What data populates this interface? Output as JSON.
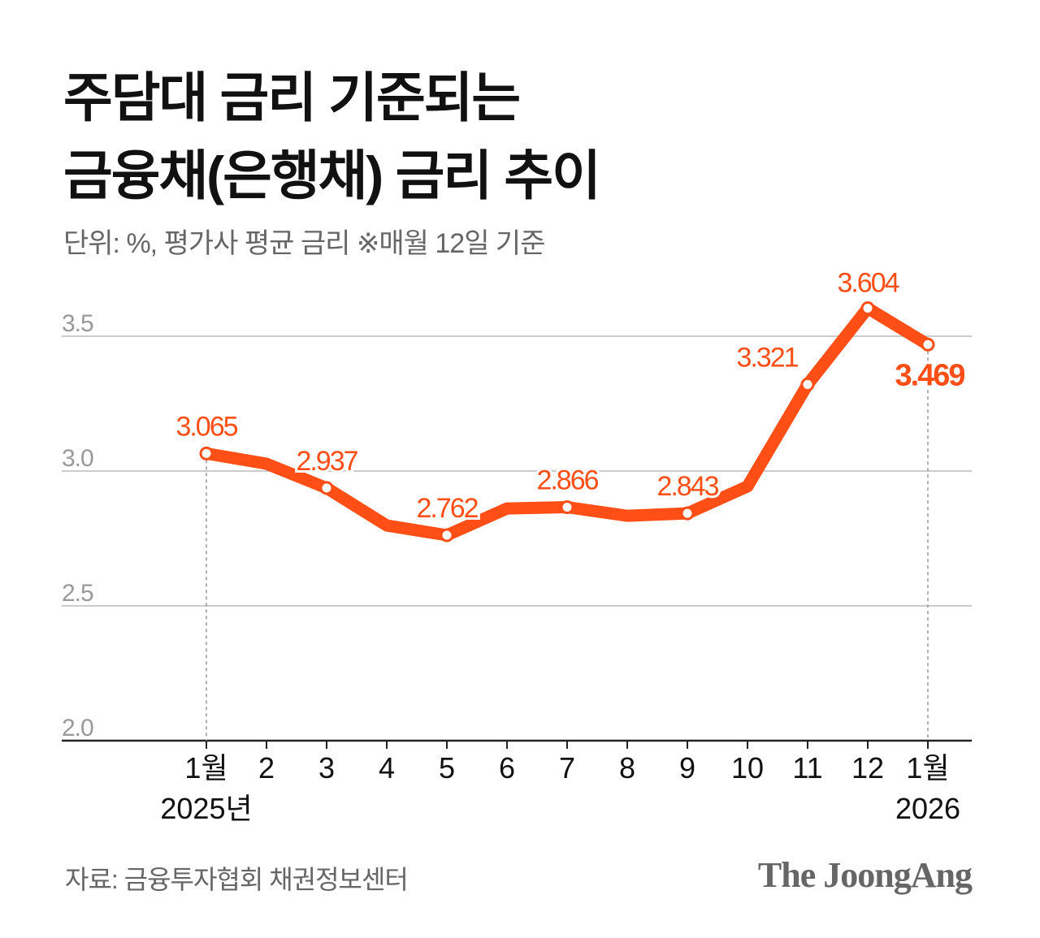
{
  "title_lines": [
    "주담대 금리 기준되는",
    "금융채(은행채) 금리 추이"
  ],
  "subtitle": "단위: %, 평가사 평균 금리  ※매월 12일 기준",
  "source": "자료: 금융투자협회 채권정보센터",
  "logo": "The JoongAng",
  "colors": {
    "line": "#ff4f17",
    "label": "#ff4f17",
    "grid": "#cccccc",
    "axis_text": "#999999"
  },
  "chart_data": {
    "type": "line",
    "title": "주담대 금리 기준되는 금융채(은행채) 금리 추이",
    "ylabel": "%",
    "ylim": [
      2.0,
      3.6
    ],
    "yticks": [
      "2.0",
      "2.5",
      "3.0",
      "3.5"
    ],
    "grid": true,
    "categories": [
      "1월",
      "2",
      "3",
      "4",
      "5",
      "6",
      "7",
      "8",
      "9",
      "10",
      "11",
      "12",
      "1월"
    ],
    "year_labels": [
      {
        "index": 0,
        "text": "2025년"
      },
      {
        "index": 12,
        "text": "2026"
      }
    ],
    "values": [
      3.065,
      3.027,
      2.937,
      2.798,
      2.762,
      2.861,
      2.866,
      2.834,
      2.843,
      2.943,
      3.321,
      3.604,
      3.469
    ],
    "data_labels": [
      {
        "index": 0,
        "text": "3.065"
      },
      {
        "index": 2,
        "text": "2.937"
      },
      {
        "index": 4,
        "text": "2.762"
      },
      {
        "index": 6,
        "text": "2.866"
      },
      {
        "index": 8,
        "text": "2.843"
      },
      {
        "index": 10,
        "text": "3.321"
      },
      {
        "index": 11,
        "text": "3.604"
      },
      {
        "index": 12,
        "text": "3.469"
      }
    ]
  }
}
